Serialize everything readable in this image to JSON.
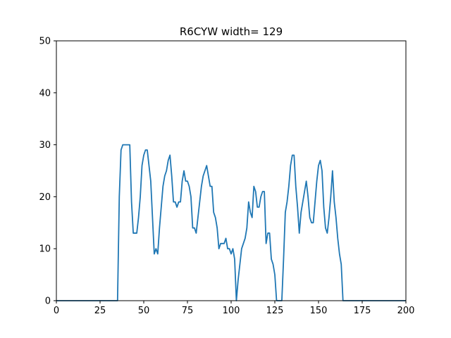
{
  "chart_data": {
    "type": "line",
    "title": "R6CYW width= 129",
    "xlabel": "",
    "ylabel": "",
    "xlim": [
      0,
      200
    ],
    "ylim": [
      0,
      50
    ],
    "x_ticks": [
      0,
      25,
      50,
      75,
      100,
      125,
      150,
      175,
      200
    ],
    "y_ticks": [
      0,
      10,
      20,
      30,
      40,
      50
    ],
    "grid": false,
    "line_color": "#1f77b4",
    "series": [
      {
        "x": [
          0,
          1,
          2,
          3,
          4,
          5,
          6,
          7,
          8,
          9,
          10,
          11,
          12,
          13,
          14,
          15,
          16,
          17,
          18,
          19,
          20,
          21,
          22,
          23,
          24,
          25,
          26,
          27,
          28,
          29,
          30,
          31,
          32,
          33,
          34,
          35,
          36,
          37,
          38,
          39,
          40,
          41,
          42,
          43,
          44,
          45,
          46,
          47,
          48,
          49,
          50,
          51,
          52,
          53,
          54,
          55,
          56,
          57,
          58,
          59,
          60,
          61,
          62,
          63,
          64,
          65,
          66,
          67,
          68,
          69,
          70,
          71,
          72,
          73,
          74,
          75,
          76,
          77,
          78,
          79,
          80,
          81,
          82,
          83,
          84,
          85,
          86,
          87,
          88,
          89,
          90,
          91,
          92,
          93,
          94,
          95,
          96,
          97,
          98,
          99,
          100,
          101,
          102,
          103,
          104,
          105,
          106,
          107,
          108,
          109,
          110,
          111,
          112,
          113,
          114,
          115,
          116,
          117,
          118,
          119,
          120,
          121,
          122,
          123,
          124,
          125,
          126,
          127,
          128,
          129,
          130,
          131,
          132,
          133,
          134,
          135,
          136,
          137,
          138,
          139,
          140,
          141,
          142,
          143,
          144,
          145,
          146,
          147,
          148,
          149,
          150,
          151,
          152,
          153,
          154,
          155,
          156,
          157,
          158,
          159,
          160,
          161,
          162,
          163,
          164,
          165,
          166,
          167,
          168,
          169,
          170,
          171,
          172,
          173,
          174,
          175,
          176,
          177,
          178,
          179,
          180,
          181,
          182,
          183,
          184,
          185,
          186,
          187,
          188,
          189,
          190,
          191,
          192,
          193,
          194,
          195,
          196,
          197,
          198,
          199,
          200
        ],
        "y": [
          0,
          0,
          0,
          0,
          0,
          0,
          0,
          0,
          0,
          0,
          0,
          0,
          0,
          0,
          0,
          0,
          0,
          0,
          0,
          0,
          0,
          0,
          0,
          0,
          0,
          0,
          0,
          0,
          0,
          0,
          0,
          0,
          0,
          0,
          0,
          0,
          20,
          29,
          30,
          30,
          30,
          30,
          30,
          19,
          13,
          13,
          13,
          16,
          20,
          26,
          28,
          29,
          29,
          26,
          23,
          16,
          9,
          10,
          9,
          14,
          18,
          22,
          24,
          25,
          27,
          28,
          24,
          19,
          19,
          18,
          19,
          19,
          23,
          25,
          23,
          23,
          22,
          20,
          14,
          14,
          13,
          16,
          19,
          22,
          24,
          25,
          26,
          24,
          22,
          22,
          17,
          16,
          14,
          10,
          11,
          11,
          11,
          12,
          10,
          10,
          9,
          10,
          8,
          0,
          4,
          7,
          10,
          11,
          12,
          14,
          19,
          17,
          16,
          22,
          21,
          18,
          18,
          20,
          21,
          21,
          11,
          13,
          13,
          8,
          7,
          5,
          0,
          0,
          0,
          0,
          8,
          17,
          19,
          22,
          26,
          28,
          28,
          22,
          18,
          13,
          17,
          19,
          21,
          23,
          20,
          16,
          15,
          15,
          19,
          23,
          26,
          27,
          25,
          18,
          14,
          13,
          16,
          20,
          25,
          19,
          16,
          12,
          9,
          7,
          0,
          0,
          0,
          0,
          0,
          0,
          0,
          0,
          0,
          0,
          0,
          0,
          0,
          0,
          0,
          0,
          0,
          0,
          0,
          0,
          0,
          0,
          0,
          0,
          0,
          0,
          0,
          0,
          0,
          0,
          0,
          0,
          0,
          0,
          0,
          0,
          0
        ]
      }
    ]
  }
}
